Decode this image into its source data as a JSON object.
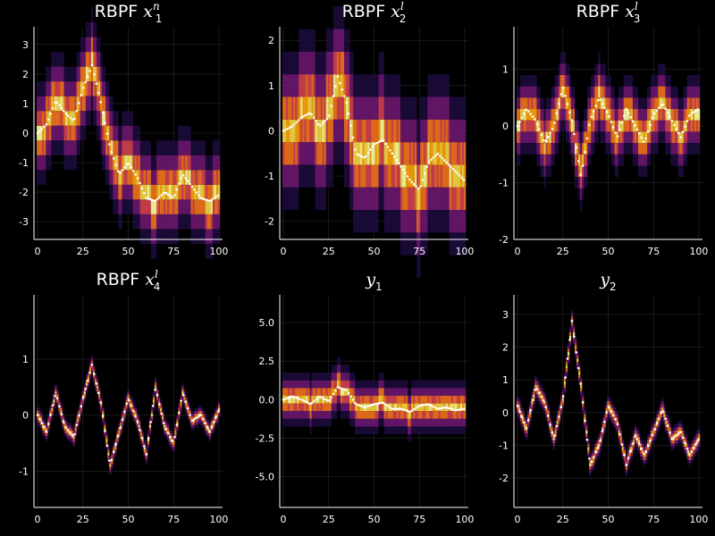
{
  "chart_data": [
    {
      "type": "heatmap",
      "title_prefix": "RBPF ",
      "title_var": "x",
      "title_sub": "1",
      "title_sup": "n",
      "xlim": [
        -2,
        102
      ],
      "ylim": [
        -3.6,
        3.6
      ],
      "xticks": [
        0,
        25,
        50,
        75,
        100
      ],
      "yticks": [
        -3,
        -2,
        -1,
        0,
        1,
        2,
        3
      ],
      "grid": true,
      "bin": 0.5,
      "points_x": [
        0,
        5,
        10,
        15,
        20,
        25,
        30,
        35,
        40,
        45,
        50,
        55,
        60,
        65,
        70,
        75,
        80,
        85,
        90,
        95,
        100
      ],
      "points_y": [
        0,
        0.3,
        1.1,
        0.7,
        0.4,
        1.5,
        2.3,
        1.0,
        -0.5,
        -1.4,
        -1.0,
        -1.5,
        -2.2,
        -2.3,
        -2.0,
        -2.2,
        -1.4,
        -1.8,
        -2.2,
        -2.3,
        -2.1
      ]
    },
    {
      "type": "heatmap",
      "title_prefix": "RBPF ",
      "title_var": "x",
      "title_sub": "2",
      "title_sup": "l",
      "xlim": [
        -2,
        102
      ],
      "ylim": [
        -2.4,
        2.3
      ],
      "xticks": [
        0,
        25,
        50,
        75,
        100
      ],
      "yticks": [
        -2,
        -1,
        0,
        1,
        2
      ],
      "grid": true,
      "bin": 0.5,
      "points_x": [
        0,
        5,
        10,
        15,
        20,
        25,
        30,
        35,
        40,
        45,
        50,
        55,
        60,
        65,
        70,
        75,
        80,
        85,
        90,
        95,
        100
      ],
      "points_y": [
        0,
        0.1,
        0.3,
        0.4,
        0.1,
        0.3,
        1.2,
        0.6,
        -0.5,
        -0.6,
        -0.3,
        -0.2,
        -0.5,
        -0.8,
        -1.1,
        -1.3,
        -0.7,
        -0.5,
        -0.7,
        -0.9,
        -1.1
      ]
    },
    {
      "type": "heatmap",
      "title_prefix": "RBPF ",
      "title_var": "x",
      "title_sub": "3",
      "title_sup": "l",
      "xlim": [
        -2,
        102
      ],
      "ylim": [
        -2.0,
        1.75
      ],
      "xticks": [
        0,
        25,
        50,
        75,
        100
      ],
      "yticks": [
        -2,
        -1,
        0,
        1
      ],
      "grid": true,
      "bin": 0.2,
      "points_x": [
        0,
        5,
        10,
        15,
        20,
        25,
        30,
        35,
        40,
        45,
        50,
        55,
        60,
        65,
        70,
        75,
        80,
        85,
        90,
        95,
        100
      ],
      "points_y": [
        0,
        0.3,
        0.1,
        -0.3,
        0.0,
        0.7,
        0.1,
        -0.9,
        0.1,
        0.5,
        0.2,
        -0.2,
        0.3,
        0.0,
        -0.3,
        0.2,
        0.4,
        0.1,
        -0.2,
        0.2,
        0.3
      ]
    },
    {
      "type": "heatmap",
      "title_prefix": "RBPF ",
      "title_var": "x",
      "title_sub": "4",
      "title_sup": "l",
      "xlim": [
        -2,
        102
      ],
      "ylim": [
        -1.65,
        2.15
      ],
      "xticks": [
        0,
        25,
        50,
        75,
        100
      ],
      "yticks": [
        -1,
        0,
        1
      ],
      "grid": true,
      "bin": 0.05,
      "points_x": [
        0,
        5,
        10,
        15,
        20,
        25,
        30,
        35,
        40,
        45,
        50,
        55,
        60,
        65,
        70,
        75,
        80,
        85,
        90,
        95,
        100
      ],
      "points_y": [
        0,
        -0.3,
        0.4,
        -0.2,
        -0.4,
        0.3,
        0.9,
        0.2,
        -0.9,
        -0.3,
        0.3,
        -0.1,
        -0.7,
        0.5,
        -0.2,
        -0.5,
        0.4,
        -0.1,
        0.0,
        -0.3,
        0.1
      ]
    },
    {
      "type": "heatmap",
      "title_prefix": "",
      "title_var": "y",
      "title_sub": "1",
      "title_sup": "",
      "xlim": [
        -2,
        102
      ],
      "ylim": [
        -7.0,
        6.8
      ],
      "xticks": [
        0,
        25,
        50,
        75,
        100
      ],
      "yticks": [
        -5.0,
        -2.5,
        0.0,
        2.5,
        5.0
      ],
      "yticklabels": [
        "-5.0",
        "-2.5",
        "0.0",
        "2.5",
        "5.0"
      ],
      "grid": true,
      "bin": 0.5,
      "points_x": [
        0,
        5,
        10,
        15,
        20,
        25,
        30,
        35,
        40,
        45,
        50,
        55,
        60,
        65,
        70,
        75,
        80,
        85,
        90,
        95,
        100
      ],
      "points_y": [
        0,
        0.2,
        0.0,
        -0.3,
        0.2,
        -0.1,
        0.8,
        0.6,
        -0.3,
        -0.5,
        -0.3,
        -0.2,
        -0.6,
        -0.6,
        -0.8,
        -0.4,
        -0.3,
        -0.6,
        -0.5,
        -0.7,
        -0.6
      ]
    },
    {
      "type": "heatmap",
      "title_prefix": "",
      "title_var": "y",
      "title_sub": "2",
      "title_sup": "",
      "xlim": [
        -2,
        102
      ],
      "ylim": [
        -2.9,
        3.6
      ],
      "xticks": [
        0,
        25,
        50,
        75,
        100
      ],
      "yticks": [
        -2,
        -1,
        0,
        1,
        2,
        3
      ],
      "grid": true,
      "bin": 0.1,
      "points_x": [
        0,
        5,
        10,
        15,
        20,
        25,
        30,
        35,
        40,
        45,
        50,
        55,
        60,
        65,
        70,
        75,
        80,
        85,
        90,
        95,
        100
      ],
      "points_y": [
        0.2,
        -0.5,
        0.8,
        0.3,
        -0.8,
        0.4,
        2.8,
        0.8,
        -1.6,
        -1.0,
        0.2,
        -0.3,
        -1.6,
        -0.7,
        -1.3,
        -0.6,
        0.1,
        -0.8,
        -0.6,
        -1.3,
        -0.8
      ]
    }
  ]
}
